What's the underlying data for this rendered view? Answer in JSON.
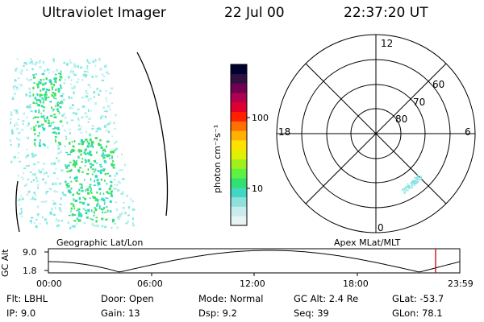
{
  "header": {
    "title": "Ultraviolet Imager",
    "date": "22 Jul 00",
    "time": "22:37:20 UT"
  },
  "colorbar": {
    "unit_label": "photon cm⁻²s⁻¹",
    "tick_100": "100",
    "tick_10": "10",
    "colors": [
      "#e8f4f4",
      "#c8ecec",
      "#8fe0dc",
      "#40d8c0",
      "#30e070",
      "#60f040",
      "#a0f020",
      "#e0f000",
      "#ffe000",
      "#ffb000",
      "#ff7000",
      "#ff2000",
      "#e00030",
      "#b00050",
      "#700050",
      "#301040",
      "#000030"
    ]
  },
  "geo_panel": {
    "label": "Geographic Lat/Lon",
    "dot_colors": [
      "#40e060",
      "#30d8c0",
      "#80e8e0",
      "#b8f0f0",
      "#20e040"
    ]
  },
  "polar_plot": {
    "label": "Apex MLat/MLT",
    "mlt_labels": {
      "top": "12",
      "left": "18",
      "right": "6",
      "bottom": "0"
    },
    "lat_labels": [
      "60",
      "70",
      "80"
    ]
  },
  "altitude_plot": {
    "ylabel": "GC Alt",
    "y_ticks": [
      "9.0",
      "1.8"
    ],
    "x_ticks": [
      "00:00",
      "06:00",
      "12:00",
      "18:00",
      "23:59"
    ],
    "line_color": "#000000",
    "marker_color": "#cc0000"
  },
  "status": {
    "filter": "Flt: LBHL",
    "ip": "IP: 9.0",
    "door": "Door: Open",
    "gain": "Gain: 13",
    "mode": "Mode: Normal",
    "dsp": "Dsp: 9.2",
    "gc_alt": "GC Alt: 2.4 Re",
    "seq": "Seq: 39",
    "glat": "GLat: -53.7",
    "glon": "GLon: 78.1"
  }
}
